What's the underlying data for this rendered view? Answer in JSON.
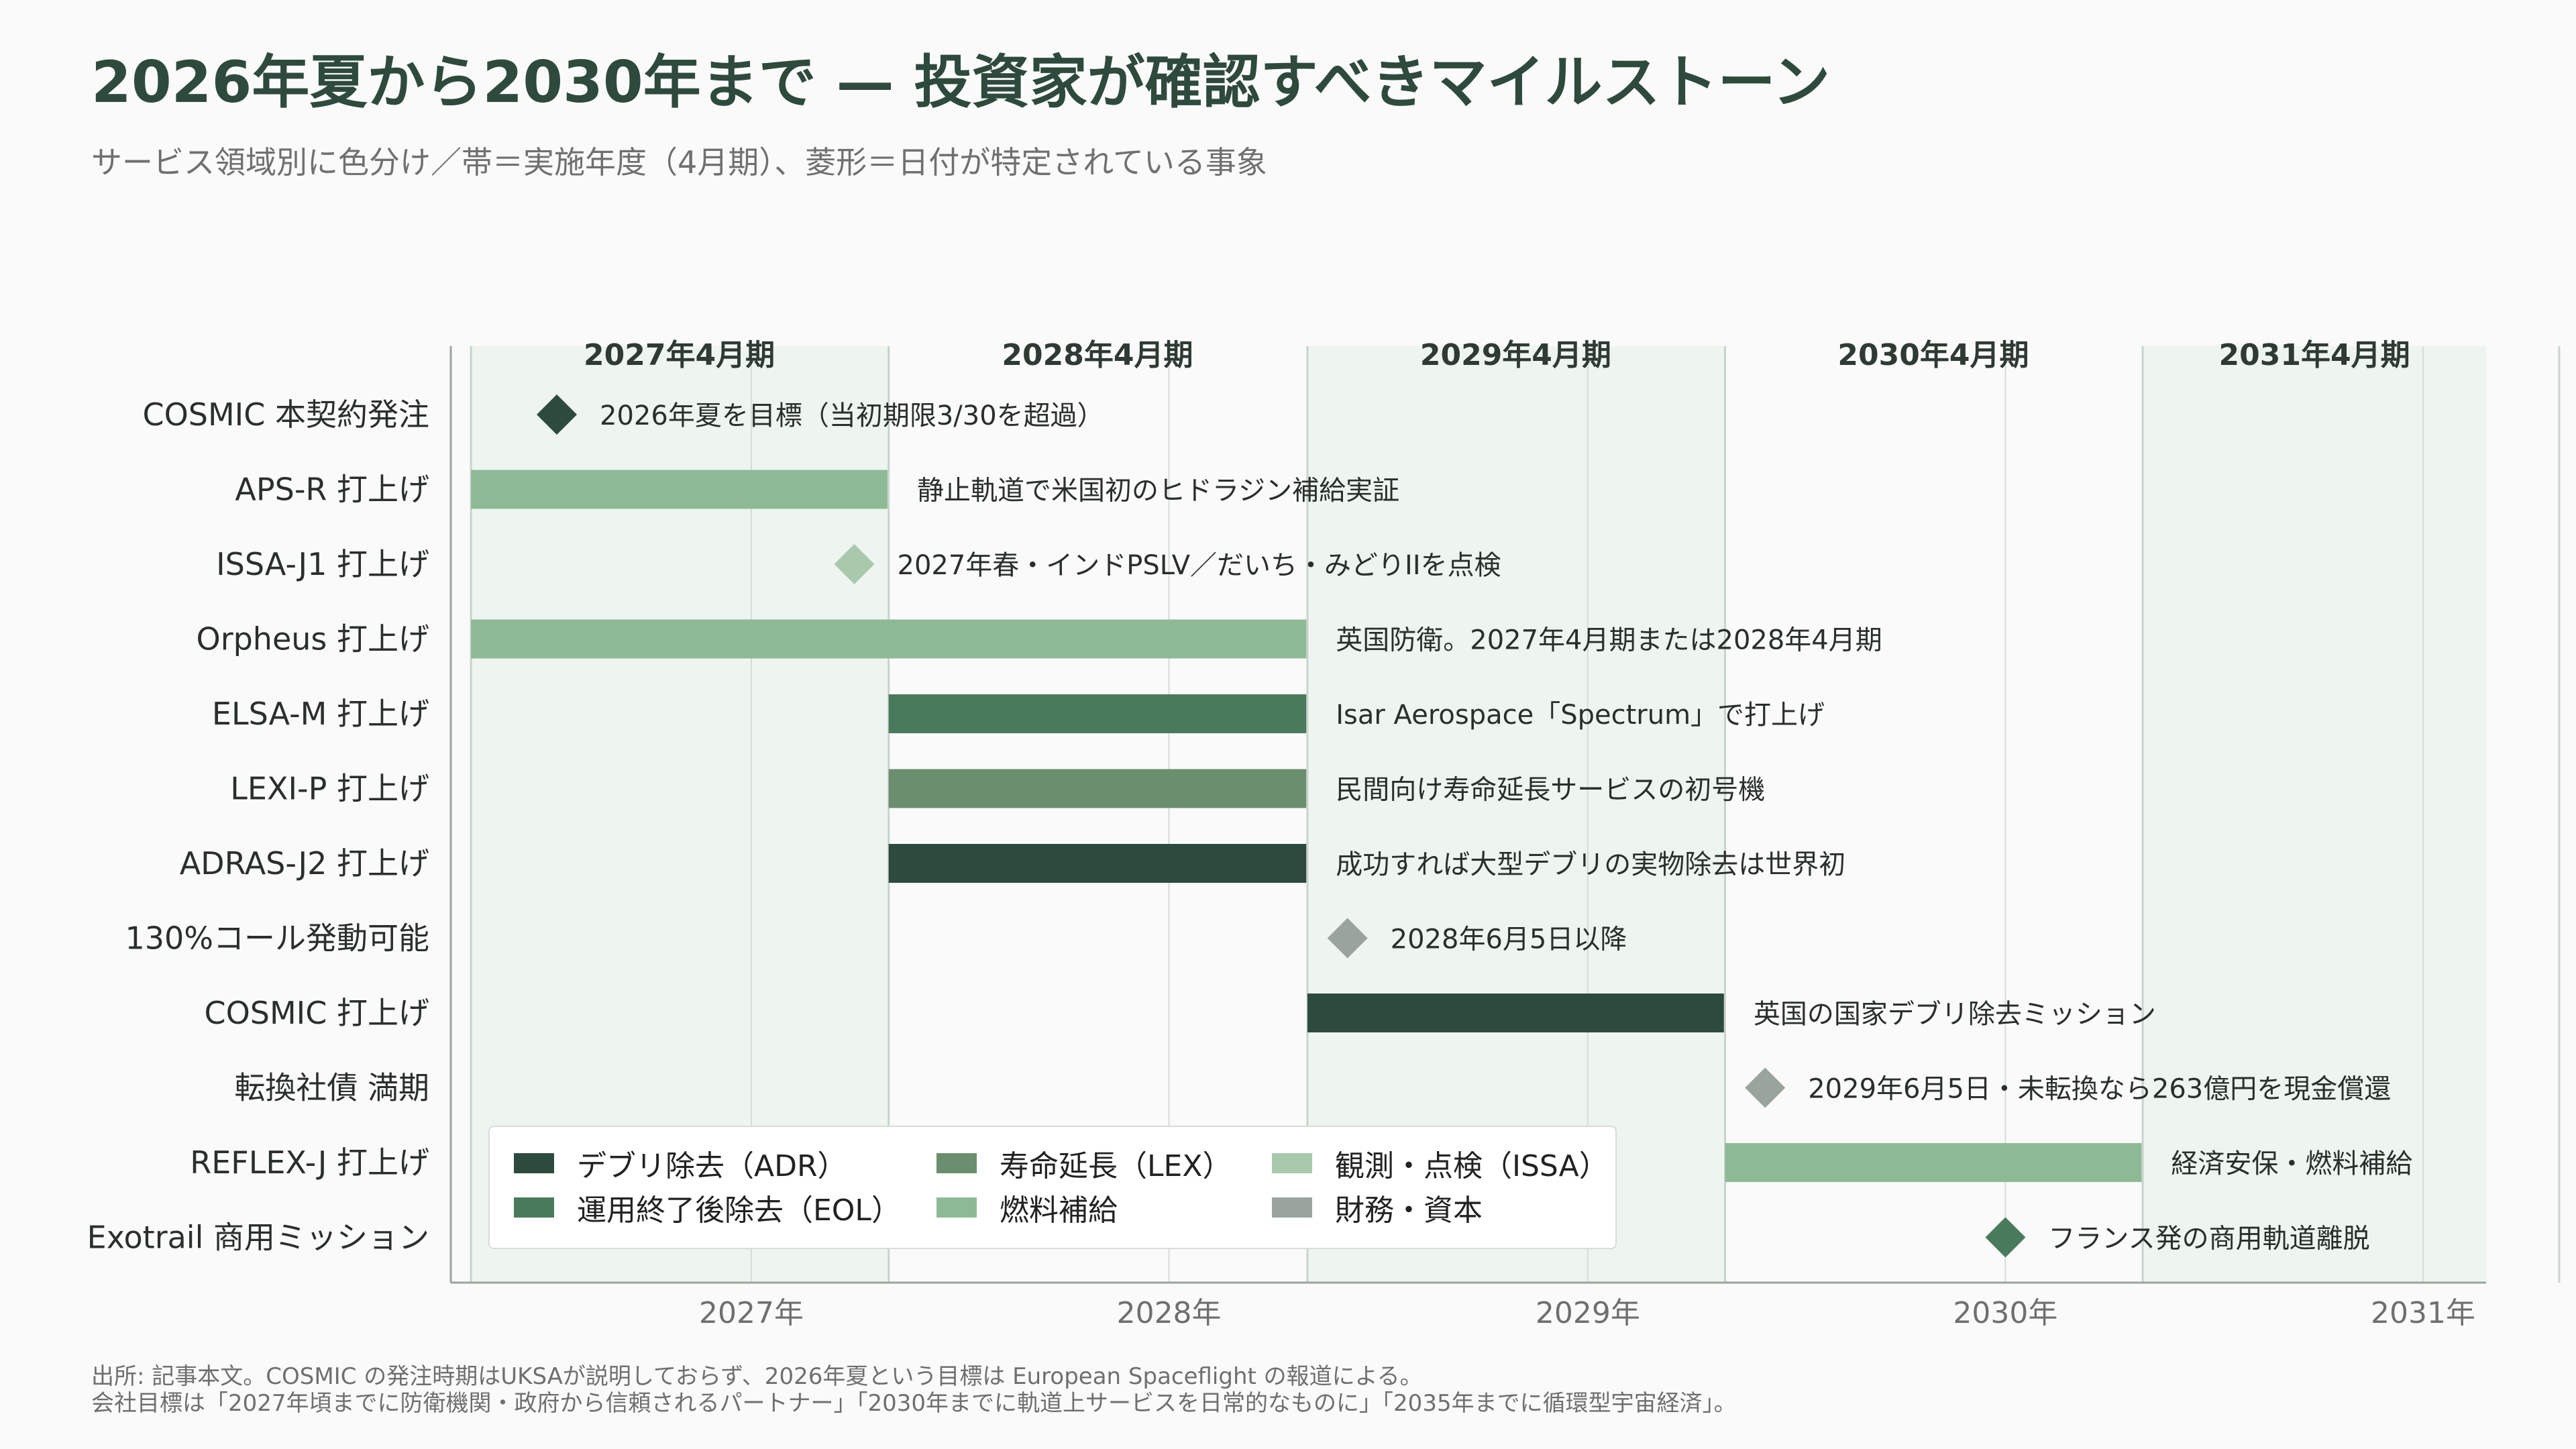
{
  "title": "2026年夏から2030年まで — 投資家が確認すべきマイルストーン",
  "subtitle": "サービス領域別に色分け／帯＝実施年度（4月期）、菱形＝日付が特定されている事象",
  "footnotes": [
    "出所: 記事本文。COSMIC の発注時期はUKSAが説明しておらず、2026年夏という目標は European Spaceflight の報道による。",
    "会社目標は「2027年頃までに防衛機関・政府から信頼されるパートナー」「2030年までに軌道上サービスを日常的なものに」「2035年までに循環型宇宙経済」。"
  ],
  "colors": {
    "adr": "#2d4a3e",
    "eol": "#4a7a5c",
    "lex": "#6b8f6e",
    "fuel": "#8dba95",
    "issa": "#a9c9ad",
    "finance": "#9aa39c",
    "band": "#eef4ef",
    "title": "#2e4a3c"
  },
  "chart_data": {
    "type": "gantt",
    "title": "2026年夏から2030年まで — 投資家が確認すべきマイルストーン",
    "x_axis": {
      "type": "date",
      "range": [
        "2026-04-01",
        "2031-05-15"
      ],
      "ticks": [
        {
          "date": "2027-01-01",
          "label": "2027年"
        },
        {
          "date": "2028-01-01",
          "label": "2028年"
        },
        {
          "date": "2029-01-01",
          "label": "2029年"
        },
        {
          "date": "2030-01-01",
          "label": "2030年"
        },
        {
          "date": "2031-01-01",
          "label": "2031年"
        }
      ]
    },
    "fiscal_years": [
      {
        "label": "2027年4月期",
        "start": "2026-05-01",
        "end": "2027-04-30",
        "shaded": true
      },
      {
        "label": "2028年4月期",
        "start": "2027-05-01",
        "end": "2028-04-30",
        "shaded": false
      },
      {
        "label": "2029年4月期",
        "start": "2028-05-01",
        "end": "2029-04-30",
        "shaded": true
      },
      {
        "label": "2030年4月期",
        "start": "2029-05-01",
        "end": "2030-04-30",
        "shaded": false
      },
      {
        "label": "2031年4月期",
        "start": "2030-05-01",
        "end": "2031-04-30",
        "shaded": true
      }
    ],
    "rows": [
      {
        "label": "COSMIC 本契約発注",
        "kind": "milestone",
        "date": "2026-07-15",
        "category": "adr",
        "note": "2026年夏を目標（当初期限3/30を超過）"
      },
      {
        "label": "APS-R 打上げ",
        "kind": "bar",
        "start": "2026-05-01",
        "end": "2027-04-30",
        "category": "fuel",
        "note": "静止軌道で米国初のヒドラジン補給実証"
      },
      {
        "label": "ISSA-J1 打上げ",
        "kind": "milestone",
        "date": "2027-04-01",
        "category": "issa",
        "note": "2027年春・インドPSLV／だいち・みどりIIを点検"
      },
      {
        "label": "Orpheus 打上げ",
        "kind": "bar",
        "start": "2026-05-01",
        "end": "2028-04-30",
        "category": "fuel",
        "note": "英国防衛。2027年4月期または2028年4月期"
      },
      {
        "label": "ELSA-M 打上げ",
        "kind": "bar",
        "start": "2027-05-01",
        "end": "2028-04-30",
        "category": "eol",
        "note": "Isar Aerospace「Spectrum」で打上げ"
      },
      {
        "label": "LEXI-P 打上げ",
        "kind": "bar",
        "start": "2027-05-01",
        "end": "2028-04-30",
        "category": "lex",
        "note": "民間向け寿命延長サービスの初号機"
      },
      {
        "label": "ADRAS-J2 打上げ",
        "kind": "bar",
        "start": "2027-05-01",
        "end": "2028-04-30",
        "category": "adr",
        "note": "成功すれば大型デブリの実物除去は世界初"
      },
      {
        "label": "130%コール発動可能",
        "kind": "milestone",
        "date": "2028-06-05",
        "category": "finance",
        "note": "2028年6月5日以降"
      },
      {
        "label": "COSMIC 打上げ",
        "kind": "bar",
        "start": "2028-05-01",
        "end": "2029-04-30",
        "category": "adr",
        "note": "英国の国家デブリ除去ミッション"
      },
      {
        "label": "転換社債 満期",
        "kind": "milestone",
        "date": "2029-06-05",
        "category": "finance",
        "note": "2029年6月5日・未転換なら263億円を現金償還"
      },
      {
        "label": "REFLEX-J 打上げ",
        "kind": "bar",
        "start": "2029-05-01",
        "end": "2030-04-30",
        "category": "fuel",
        "note": "経済安保・燃料補給"
      },
      {
        "label": "Exotrail 商用ミッション",
        "kind": "milestone",
        "date": "2030-01-01",
        "category": "eol",
        "note": "フランス発の商用軌道離脱"
      }
    ],
    "legend": [
      {
        "key": "adr",
        "label": "デブリ除去（ADR）"
      },
      {
        "key": "lex",
        "label": "寿命延長（LEX）"
      },
      {
        "key": "issa",
        "label": "観測・点検（ISSA）"
      },
      {
        "key": "eol",
        "label": "運用終了後除去（EOL）"
      },
      {
        "key": "fuel",
        "label": "燃料補給"
      },
      {
        "key": "finance",
        "label": "財務・資本"
      }
    ],
    "legend_position": "bottom-left",
    "grid": {
      "vertical": true,
      "horizontal": false
    }
  }
}
